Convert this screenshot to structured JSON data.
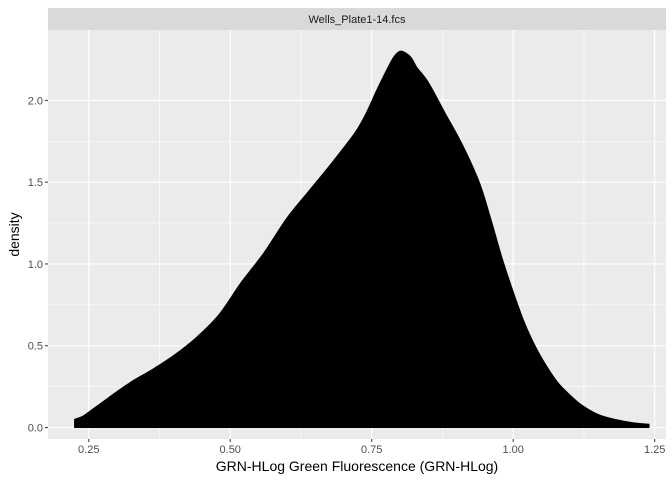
{
  "chart_data": {
    "type": "area",
    "facet_label": "Wells_Plate1-14.fcs",
    "xlabel": "GRN-HLog Green Fluorescence (GRN-HLog)",
    "ylabel": "density",
    "xlim": [
      0.178,
      1.27
    ],
    "ylim": [
      -0.07,
      2.43
    ],
    "x_ticks": [
      0.25,
      0.5,
      0.75,
      1.0,
      1.25
    ],
    "x_tick_labels": [
      "0.25",
      "0.50",
      "0.75",
      "1.00",
      "1.25"
    ],
    "y_ticks": [
      0.0,
      0.5,
      1.0,
      1.5,
      2.0
    ],
    "y_tick_labels": [
      "0.0",
      "0.5",
      "1.0",
      "1.5",
      "2.0"
    ],
    "grid": true,
    "fill_color": "#000000",
    "panel_color": "#ebebeb",
    "strip_color": "#d9d9d9",
    "series": [
      {
        "x": [
          0.225,
          0.24,
          0.26,
          0.28,
          0.3,
          0.33,
          0.36,
          0.4,
          0.44,
          0.48,
          0.52,
          0.56,
          0.6,
          0.64,
          0.68,
          0.72,
          0.74,
          0.76,
          0.78,
          0.79,
          0.8,
          0.81,
          0.82,
          0.83,
          0.85,
          0.88,
          0.91,
          0.94,
          0.96,
          0.98,
          1.0,
          1.02,
          1.04,
          1.06,
          1.08,
          1.1,
          1.12,
          1.15,
          1.18,
          1.21,
          1.24
        ],
        "y": [
          0.05,
          0.07,
          0.12,
          0.17,
          0.22,
          0.29,
          0.35,
          0.44,
          0.55,
          0.69,
          0.89,
          1.07,
          1.28,
          1.45,
          1.62,
          1.8,
          1.92,
          2.07,
          2.21,
          2.27,
          2.3,
          2.29,
          2.26,
          2.2,
          2.11,
          1.92,
          1.73,
          1.5,
          1.28,
          1.04,
          0.83,
          0.64,
          0.49,
          0.37,
          0.27,
          0.2,
          0.14,
          0.08,
          0.05,
          0.03,
          0.02
        ]
      }
    ]
  }
}
